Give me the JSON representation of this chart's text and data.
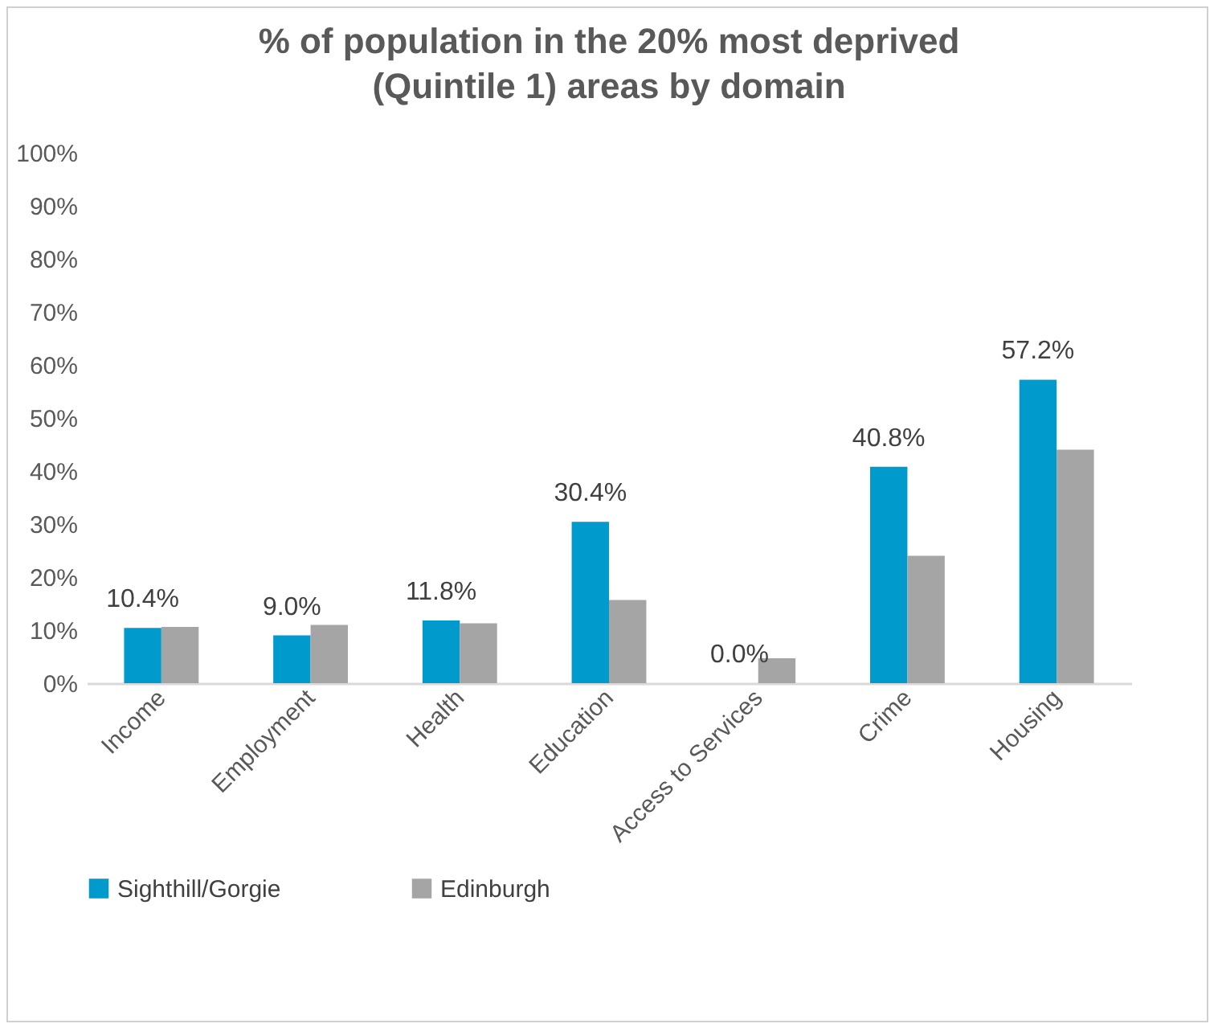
{
  "chart_data": {
    "type": "bar",
    "title": "% of population in the 20% most deprived (Quintile 1) areas by domain",
    "categories": [
      "Income",
      "Employment",
      "Health",
      "Education",
      "Access to Services",
      "Crime",
      "Housing"
    ],
    "series": [
      {
        "name": "Sighthill/Gorgie",
        "color": "#009ACD",
        "values": [
          10.4,
          9.0,
          11.8,
          30.4,
          0.0,
          40.8,
          57.2
        ],
        "value_labels": [
          "10.4%",
          "9.0%",
          "11.8%",
          "30.4%",
          "0.0%",
          "40.8%",
          "57.2%"
        ]
      },
      {
        "name": "Edinburgh",
        "color": "#A5A5A5",
        "values": [
          10.6,
          11.0,
          11.3,
          15.7,
          4.7,
          24.0,
          44.0
        ]
      }
    ],
    "ylim": [
      0,
      100
    ],
    "yticks": [
      {
        "value": 0,
        "label": "0%"
      },
      {
        "value": 10,
        "label": "10%"
      },
      {
        "value": 20,
        "label": "20%"
      },
      {
        "value": 30,
        "label": "30%"
      },
      {
        "value": 40,
        "label": "40%"
      },
      {
        "value": 50,
        "label": "50%"
      },
      {
        "value": 60,
        "label": "60%"
      },
      {
        "value": 70,
        "label": "70%"
      },
      {
        "value": 80,
        "label": "80%"
      },
      {
        "value": 90,
        "label": "90%"
      },
      {
        "value": 100,
        "label": "100%"
      }
    ],
    "grid": false,
    "legend": "bottom"
  }
}
